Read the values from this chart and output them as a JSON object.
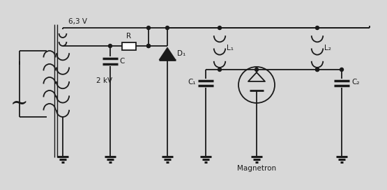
{
  "bg_color": "#d8d8d8",
  "line_color": "#1a1a1a",
  "label_6V": "6,3 V",
  "label_2kV": "2 kV",
  "label_R": "R",
  "label_C": "C",
  "label_D1": "D₁",
  "label_L1": "L₁",
  "label_L2": "L₂",
  "label_C1": "C₁",
  "label_C2": "C₂",
  "label_magnetron": "Magnetron",
  "figsize": [
    5.55,
    2.73
  ],
  "dpi": 100
}
